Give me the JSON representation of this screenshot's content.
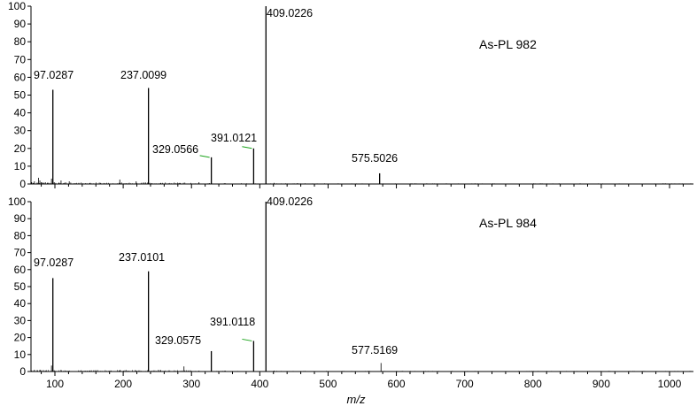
{
  "colors": {
    "axis": "#000000",
    "peak": "#000000",
    "leader": "#1aa31a",
    "background": "#ffffff"
  },
  "chart_data": [
    {
      "type": "bar",
      "title": "As-PL 982",
      "xlabel": "",
      "ylabel": "",
      "xlim": [
        65,
        1035
      ],
      "ylim": [
        0,
        100
      ],
      "yticks": [
        0,
        10,
        20,
        30,
        40,
        50,
        60,
        70,
        80,
        90,
        100
      ],
      "xticks": [],
      "grid": false,
      "peaks": [
        {
          "mz": 66,
          "intensity": 1.0
        },
        {
          "mz": 68,
          "intensity": 0.6
        },
        {
          "mz": 70,
          "intensity": 1.5
        },
        {
          "mz": 74,
          "intensity": 0.8
        },
        {
          "mz": 76,
          "intensity": 3.5
        },
        {
          "mz": 78,
          "intensity": 2.0
        },
        {
          "mz": 80,
          "intensity": 1.0
        },
        {
          "mz": 83,
          "intensity": 0.8
        },
        {
          "mz": 86,
          "intensity": 1.0
        },
        {
          "mz": 89,
          "intensity": 0.7
        },
        {
          "mz": 95,
          "intensity": 3.0
        },
        {
          "mz": 97.0287,
          "intensity": 53,
          "label": "97.0287"
        },
        {
          "mz": 99,
          "intensity": 1.0
        },
        {
          "mz": 106,
          "intensity": 0.8
        },
        {
          "mz": 109,
          "intensity": 2.0
        },
        {
          "mz": 113,
          "intensity": 0.5
        },
        {
          "mz": 121,
          "intensity": 1.5
        },
        {
          "mz": 135,
          "intensity": 0.6
        },
        {
          "mz": 151,
          "intensity": 0.5
        },
        {
          "mz": 167,
          "intensity": 0.6
        },
        {
          "mz": 195,
          "intensity": 2.5
        },
        {
          "mz": 219,
          "intensity": 1.5
        },
        {
          "mz": 237.0099,
          "intensity": 54,
          "label": "237.0099"
        },
        {
          "mz": 255,
          "intensity": 0.5
        },
        {
          "mz": 283,
          "intensity": 0.6
        },
        {
          "mz": 311,
          "intensity": 1.0
        },
        {
          "mz": 326,
          "intensity": 0.5
        },
        {
          "mz": 329.0566,
          "intensity": 15,
          "label": "329.0566",
          "leader": true
        },
        {
          "mz": 349,
          "intensity": 0.5
        },
        {
          "mz": 373,
          "intensity": 0.4
        },
        {
          "mz": 391.0121,
          "intensity": 20,
          "label": "391.0121",
          "leader": true
        },
        {
          "mz": 409.0226,
          "intensity": 100,
          "label": "409.0226"
        },
        {
          "mz": 421,
          "intensity": 0.6
        },
        {
          "mz": 455,
          "intensity": 0.4
        },
        {
          "mz": 575.5026,
          "intensity": 6,
          "label": "575.5026"
        },
        {
          "mz": 653,
          "intensity": 0.3
        },
        {
          "mz": 829,
          "intensity": 0.3
        },
        {
          "mz": 1031,
          "intensity": 0.3
        }
      ]
    },
    {
      "type": "bar",
      "title": "As-PL 984",
      "xlabel": "m/z",
      "ylabel": "",
      "xlim": [
        65,
        1035
      ],
      "ylim": [
        0,
        100
      ],
      "yticks": [
        0,
        10,
        20,
        30,
        40,
        50,
        60,
        70,
        80,
        90,
        100
      ],
      "xticks": [
        100,
        200,
        300,
        400,
        500,
        600,
        700,
        800,
        900,
        1000
      ],
      "grid": false,
      "peaks": [
        {
          "mz": 66,
          "intensity": 0.5
        },
        {
          "mz": 70,
          "intensity": 1.0
        },
        {
          "mz": 74,
          "intensity": 0.8
        },
        {
          "mz": 78,
          "intensity": 1.0
        },
        {
          "mz": 83,
          "intensity": 0.8
        },
        {
          "mz": 86,
          "intensity": 0.6
        },
        {
          "mz": 95,
          "intensity": 3.5
        },
        {
          "mz": 97.0287,
          "intensity": 55,
          "label": "97.0287"
        },
        {
          "mz": 99,
          "intensity": 0.7
        },
        {
          "mz": 109,
          "intensity": 1.0
        },
        {
          "mz": 121,
          "intensity": 0.5
        },
        {
          "mz": 151,
          "intensity": 0.5
        },
        {
          "mz": 195,
          "intensity": 0.8
        },
        {
          "mz": 219,
          "intensity": 0.6
        },
        {
          "mz": 237.0101,
          "intensity": 59,
          "label": "237.0101"
        },
        {
          "mz": 255,
          "intensity": 0.5
        },
        {
          "mz": 289,
          "intensity": 3.0
        },
        {
          "mz": 311,
          "intensity": 0.5
        },
        {
          "mz": 329.0575,
          "intensity": 12,
          "label": "329.0575"
        },
        {
          "mz": 349,
          "intensity": 0.5
        },
        {
          "mz": 391.0118,
          "intensity": 18,
          "label": "391.0118",
          "leader": true
        },
        {
          "mz": 409.0226,
          "intensity": 100,
          "label": "409.0226"
        },
        {
          "mz": 421,
          "intensity": 0.5
        },
        {
          "mz": 559,
          "intensity": 0.4
        },
        {
          "mz": 577.5169,
          "intensity": 5,
          "label": "577.5169"
        },
        {
          "mz": 791,
          "intensity": 0.3
        },
        {
          "mz": 1031,
          "intensity": 0.3
        }
      ]
    }
  ]
}
